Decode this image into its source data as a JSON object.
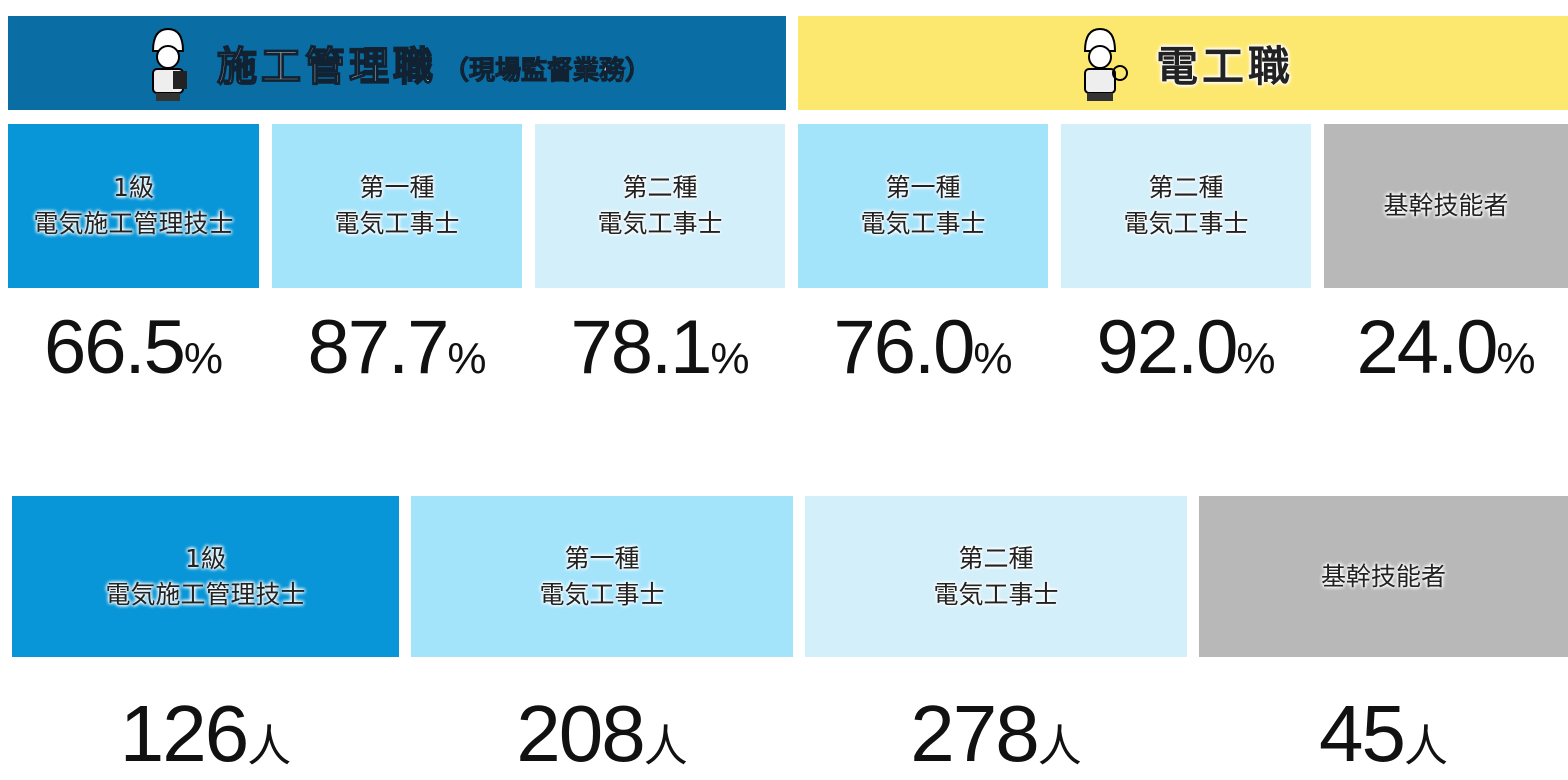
{
  "header": {
    "left": {
      "title": "施工管理職",
      "subtitle": "（現場監督業務）"
    },
    "right": {
      "title": "電工職"
    }
  },
  "rate_cards": [
    {
      "label": [
        "1級",
        "電気施工管理技士"
      ],
      "number": "66.5",
      "unit": "%"
    },
    {
      "label": [
        "第一種",
        "電気工事士"
      ],
      "number": "87.7",
      "unit": "%"
    },
    {
      "label": [
        "第二種",
        "電気工事士"
      ],
      "number": "78.1",
      "unit": "%"
    },
    {
      "label": [
        "第一種",
        "電気工事士"
      ],
      "number": "76.0",
      "unit": "%"
    },
    {
      "label": [
        "第二種",
        "電気工事士"
      ],
      "number": "92.0",
      "unit": "%"
    },
    {
      "label": [
        "基幹技能者"
      ],
      "number": "24.0",
      "unit": "%"
    }
  ],
  "count_cards": [
    {
      "label": [
        "1級",
        "電気施工管理技士"
      ],
      "number": "126",
      "unit": "人"
    },
    {
      "label": [
        "第一種",
        "電気工事士"
      ],
      "number": "208",
      "unit": "人"
    },
    {
      "label": [
        "第二種",
        "電気工事士"
      ],
      "number": "278",
      "unit": "人"
    },
    {
      "label": [
        "基幹技能者"
      ],
      "number": "45",
      "unit": "人"
    }
  ]
}
